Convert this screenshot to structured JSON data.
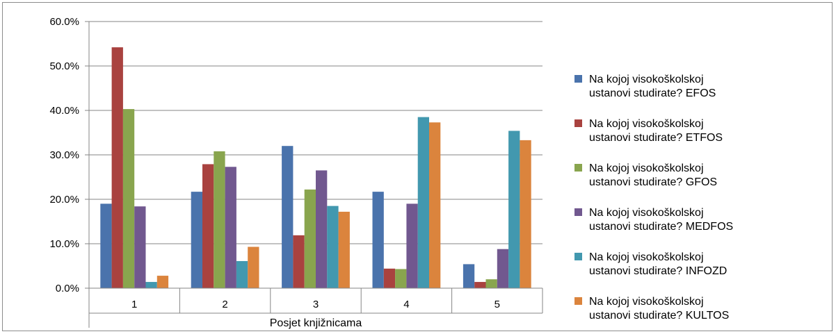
{
  "chart_data": {
    "type": "bar",
    "title": "",
    "xlabel": "Posjet knjižnicama",
    "ylabel": "",
    "categories": [
      "1",
      "2",
      "3",
      "4",
      "5"
    ],
    "ylim": [
      0,
      60
    ],
    "yticks": [
      "0.0%",
      "10.0%",
      "20.0%",
      "30.0%",
      "40.0%",
      "50.0%",
      "60.0%"
    ],
    "grid": true,
    "legend_position": "right",
    "series": [
      {
        "name": "Na kojoj visokoškolskoj ustanovi studirate? EFOS",
        "legend_line1": "Na kojoj visokoškolskoj",
        "legend_line2": "ustanovi studirate? EFOS",
        "color": "#4a73ac",
        "values": [
          19.0,
          21.7,
          32.0,
          21.7,
          5.4
        ]
      },
      {
        "name": "Na kojoj visokoškolskoj ustanovi studirate? ETFOS",
        "legend_line1": "Na kojoj visokoškolskoj",
        "legend_line2": "ustanovi studirate? ETFOS",
        "color": "#a9423f",
        "values": [
          54.2,
          27.9,
          11.9,
          4.4,
          1.4
        ]
      },
      {
        "name": "Na kojoj visokoškolskoj ustanovi studirate? GFOS",
        "legend_line1": "Na kojoj visokoškolskoj",
        "legend_line2": "ustanovi studirate? GFOS",
        "color": "#89a54e",
        "values": [
          40.3,
          30.8,
          22.2,
          4.3,
          2.0
        ]
      },
      {
        "name": "Na kojoj visokoškolskoj ustanovi studirate? MEDFOS",
        "legend_line1": "Na kojoj visokoškolskoj",
        "legend_line2": "ustanovi studirate? MEDFOS",
        "color": "#71588f",
        "values": [
          18.4,
          27.3,
          26.5,
          19.0,
          8.8
        ]
      },
      {
        "name": "Na kojoj visokoškolskoj ustanovi studirate? INFOZD",
        "legend_line1": "Na kojoj visokoškolskoj",
        "legend_line2": "ustanovi studirate? INFOZD",
        "color": "#4298af",
        "values": [
          1.4,
          6.1,
          18.5,
          38.5,
          35.4
        ]
      },
      {
        "name": "Na kojoj visokoškolskoj ustanovi studirate? KULTOS",
        "legend_line1": "Na kojoj visokoškolskoj",
        "legend_line2": "ustanovi studirate? KULTOS",
        "color": "#db843d",
        "values": [
          2.8,
          9.3,
          17.2,
          37.3,
          33.3
        ]
      }
    ]
  }
}
